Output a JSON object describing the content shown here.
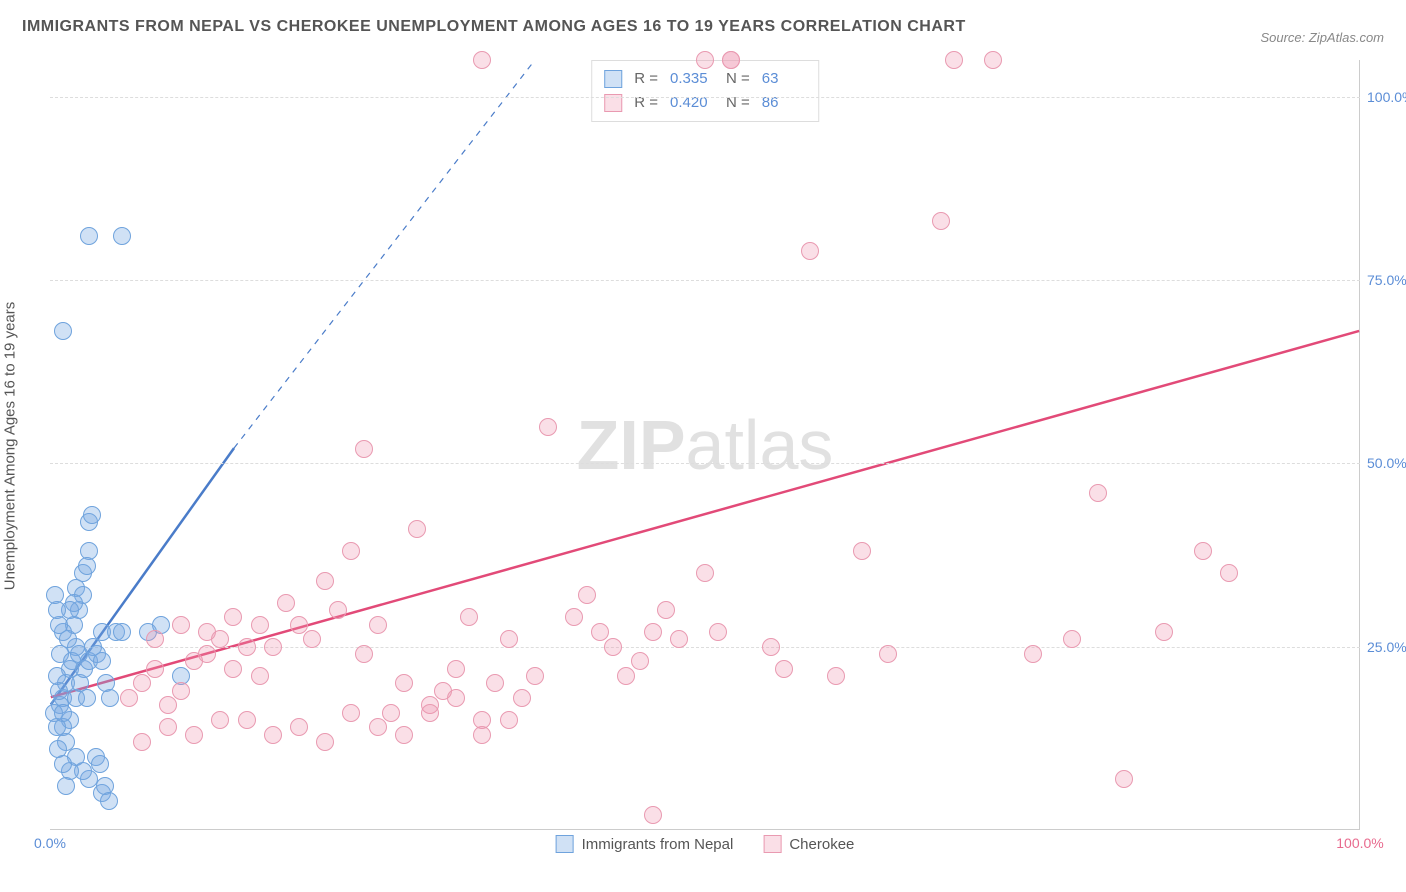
{
  "title": "IMMIGRANTS FROM NEPAL VS CHEROKEE UNEMPLOYMENT AMONG AGES 16 TO 19 YEARS CORRELATION CHART",
  "source": "Source: ZipAtlas.com",
  "watermark": {
    "part1": "ZIP",
    "part2": "atlas"
  },
  "y_axis_label": "Unemployment Among Ages 16 to 19 years",
  "chart": {
    "type": "scatter",
    "xlim": [
      0,
      100
    ],
    "ylim": [
      0,
      105
    ],
    "y_ticks": [
      25,
      50,
      75,
      100
    ],
    "y_tick_labels": [
      "25.0%",
      "50.0%",
      "75.0%",
      "100.0%"
    ],
    "x_tick_left": "0.0%",
    "x_tick_right": "100.0%",
    "y_tick_color": "#5b8dd6",
    "x_tick_left_color": "#5b8dd6",
    "x_tick_right_color": "#e86a8e",
    "grid_color": "#dddddd",
    "background": "#ffffff",
    "marker_radius": 9,
    "marker_border_width": 1.2,
    "series": [
      {
        "name": "Immigrants from Nepal",
        "fill_color": "rgba(120,170,225,0.35)",
        "stroke_color": "#6fa3dd",
        "trend_color": "#4a7cc9",
        "trend_width": 2.5,
        "trend": {
          "x1": 0,
          "y1": 17,
          "x2": 14,
          "y2": 52,
          "extend_x": 37,
          "extend_y": 105
        },
        "R": "0.335",
        "N": "63",
        "points": [
          [
            1.0,
            18
          ],
          [
            1.2,
            20
          ],
          [
            1.5,
            22
          ],
          [
            0.8,
            17
          ],
          [
            2.0,
            25
          ],
          [
            2.2,
            30
          ],
          [
            1.8,
            28
          ],
          [
            2.5,
            35
          ],
          [
            3.0,
            42
          ],
          [
            3.2,
            43
          ],
          [
            3.0,
            38
          ],
          [
            2.8,
            36
          ],
          [
            2.0,
            18
          ],
          [
            1.5,
            15
          ],
          [
            1.2,
            12
          ],
          [
            1.0,
            14
          ],
          [
            0.7,
            19
          ],
          [
            0.5,
            21
          ],
          [
            0.8,
            24
          ],
          [
            1.0,
            27
          ],
          [
            1.4,
            26
          ],
          [
            1.7,
            23
          ],
          [
            2.3,
            20
          ],
          [
            2.8,
            18
          ],
          [
            3.5,
            10
          ],
          [
            3.8,
            9
          ],
          [
            4.0,
            5
          ],
          [
            4.2,
            6
          ],
          [
            4.5,
            4
          ],
          [
            3.0,
            7
          ],
          [
            2.5,
            8
          ],
          [
            2.0,
            10
          ],
          [
            1.5,
            8
          ],
          [
            1.2,
            6
          ],
          [
            1.0,
            9
          ],
          [
            0.6,
            11
          ],
          [
            4.0,
            27
          ],
          [
            5.0,
            27
          ],
          [
            5.5,
            27
          ],
          [
            7.5,
            27
          ],
          [
            8.5,
            28
          ],
          [
            10.0,
            21
          ],
          [
            2.0,
            33
          ],
          [
            2.5,
            32
          ],
          [
            1.8,
            31
          ],
          [
            1.5,
            30
          ],
          [
            0.7,
            28
          ],
          [
            0.5,
            30
          ],
          [
            0.4,
            32
          ],
          [
            0.3,
            16
          ],
          [
            0.5,
            14
          ],
          [
            1.0,
            16
          ],
          [
            5.5,
            81
          ],
          [
            3.0,
            81
          ],
          [
            1.0,
            68
          ],
          [
            2.2,
            24
          ],
          [
            2.6,
            22
          ],
          [
            3.0,
            23
          ],
          [
            3.3,
            25
          ],
          [
            3.6,
            24
          ],
          [
            4.0,
            23
          ],
          [
            4.3,
            20
          ],
          [
            4.6,
            18
          ]
        ]
      },
      {
        "name": "Cherokee",
        "fill_color": "rgba(240,150,175,0.30)",
        "stroke_color": "#e99ab1",
        "trend_color": "#e24a78",
        "trend_width": 2.5,
        "trend": {
          "x1": 0,
          "y1": 18,
          "x2": 100,
          "y2": 68
        },
        "R": "0.420",
        "N": "86",
        "points": [
          [
            6,
            18
          ],
          [
            7,
            20
          ],
          [
            8,
            22
          ],
          [
            9,
            17
          ],
          [
            10,
            19
          ],
          [
            11,
            23
          ],
          [
            12,
            27
          ],
          [
            13,
            26
          ],
          [
            14,
            29
          ],
          [
            15,
            25
          ],
          [
            16,
            28
          ],
          [
            17,
            25
          ],
          [
            18,
            31
          ],
          [
            19,
            28
          ],
          [
            20,
            26
          ],
          [
            21,
            34
          ],
          [
            22,
            30
          ],
          [
            23,
            38
          ],
          [
            24,
            24
          ],
          [
            25,
            28
          ],
          [
            26,
            16
          ],
          [
            27,
            20
          ],
          [
            28,
            41
          ],
          [
            29,
            17
          ],
          [
            30,
            19
          ],
          [
            31,
            22
          ],
          [
            32,
            29
          ],
          [
            33,
            15
          ],
          [
            34,
            20
          ],
          [
            35,
            26
          ],
          [
            36,
            18
          ],
          [
            37,
            21
          ],
          [
            38,
            55
          ],
          [
            24,
            52
          ],
          [
            33,
            105
          ],
          [
            50,
            105
          ],
          [
            52,
            105
          ],
          [
            40,
            29
          ],
          [
            41,
            32
          ],
          [
            42,
            27
          ],
          [
            43,
            25
          ],
          [
            44,
            21
          ],
          [
            45,
            23
          ],
          [
            46,
            27
          ],
          [
            47,
            30
          ],
          [
            48,
            26
          ],
          [
            50,
            35
          ],
          [
            51,
            27
          ],
          [
            52,
            105
          ],
          [
            55,
            25
          ],
          [
            56,
            22
          ],
          [
            58,
            79
          ],
          [
            60,
            21
          ],
          [
            62,
            38
          ],
          [
            64,
            24
          ],
          [
            46,
            2
          ],
          [
            68,
            83
          ],
          [
            69,
            105
          ],
          [
            72,
            105
          ],
          [
            75,
            24
          ],
          [
            78,
            26
          ],
          [
            80,
            46
          ],
          [
            82,
            7
          ],
          [
            85,
            27
          ],
          [
            88,
            38
          ],
          [
            90,
            35
          ],
          [
            15,
            15
          ],
          [
            17,
            13
          ],
          [
            19,
            14
          ],
          [
            21,
            12
          ],
          [
            23,
            16
          ],
          [
            25,
            14
          ],
          [
            27,
            13
          ],
          [
            29,
            16
          ],
          [
            31,
            18
          ],
          [
            33,
            13
          ],
          [
            35,
            15
          ],
          [
            9,
            14
          ],
          [
            11,
            13
          ],
          [
            13,
            15
          ],
          [
            7,
            12
          ],
          [
            8,
            26
          ],
          [
            10,
            28
          ],
          [
            12,
            24
          ],
          [
            14,
            22
          ],
          [
            16,
            21
          ]
        ]
      }
    ]
  },
  "stats_legend": {
    "label_R": "R =",
    "label_N": "N ="
  },
  "bottom_legend_labels": [
    "Immigrants from Nepal",
    "Cherokee"
  ]
}
